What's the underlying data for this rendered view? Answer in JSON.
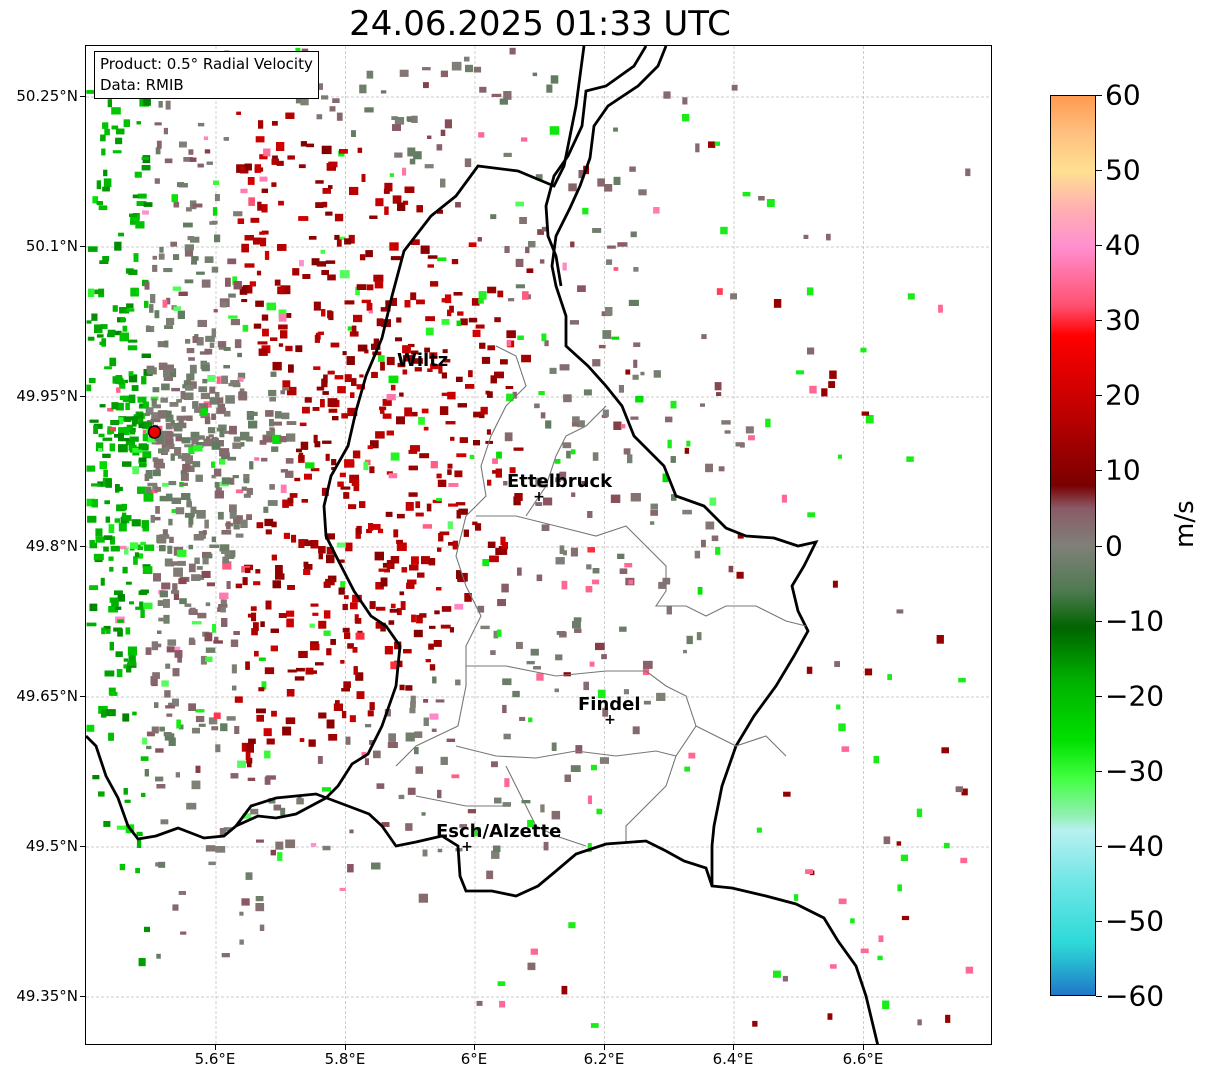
{
  "title": "24.06.2025 01:33 UTC",
  "info": {
    "product": "Product: 0.5° Radial Velocity",
    "data": "Data: RMIB"
  },
  "axes": {
    "lat_ticks": [
      "50.25°N",
      "50.1°N",
      "49.95°N",
      "49.8°N",
      "49.65°N",
      "49.5°N",
      "49.35°N"
    ],
    "lon_ticks": [
      "5.6°E",
      "5.8°E",
      "6°E",
      "6.2°E",
      "6.4°E",
      "6.6°E"
    ],
    "lat_range": [
      49.3,
      50.3
    ],
    "lon_range": [
      5.4,
      6.8
    ]
  },
  "cities": [
    {
      "name": "Wiltz",
      "lon": 5.93,
      "lat": 49.97,
      "marker": false
    },
    {
      "name": "Ettelbruck",
      "lon": 6.1,
      "lat": 49.85,
      "marker": true
    },
    {
      "name": "Findel",
      "lon": 6.21,
      "lat": 49.63,
      "marker": true
    },
    {
      "name": "Esch/Alzette",
      "lon": 5.99,
      "lat": 49.5,
      "marker": true
    }
  ],
  "radar_site": {
    "name": "radar-site",
    "lon": 5.505,
    "lat": 49.915
  },
  "colorbar": {
    "unit": "m/s",
    "min": -60,
    "max": 60,
    "tick_labels": [
      "60",
      "50",
      "40",
      "30",
      "20",
      "10",
      "0",
      "−10",
      "−20",
      "−30",
      "−40",
      "−50",
      "−60"
    ],
    "stops": [
      {
        "v": -60,
        "c": "#1f78c8"
      },
      {
        "v": -56,
        "c": "#27b3d0"
      },
      {
        "v": -53,
        "c": "#2ed9d9"
      },
      {
        "v": -45,
        "c": "#6fe6e6"
      },
      {
        "v": -38,
        "c": "#b8f0f0"
      },
      {
        "v": -36,
        "c": "#90f0b0"
      },
      {
        "v": -31,
        "c": "#40ff40"
      },
      {
        "v": -26,
        "c": "#00e000"
      },
      {
        "v": -18,
        "c": "#00b000"
      },
      {
        "v": -11,
        "c": "#006400"
      },
      {
        "v": -6,
        "c": "#4f7a52"
      },
      {
        "v": 0,
        "c": "#808078"
      },
      {
        "v": 5,
        "c": "#8a5a66"
      },
      {
        "v": 8,
        "c": "#7a0000"
      },
      {
        "v": 18,
        "c": "#c00000"
      },
      {
        "v": 28,
        "c": "#ff0000"
      },
      {
        "v": 32,
        "c": "#ff5070"
      },
      {
        "v": 40,
        "c": "#ff90d0"
      },
      {
        "v": 45,
        "c": "#ffb0b0"
      },
      {
        "v": 50,
        "c": "#ffe090"
      },
      {
        "v": 55,
        "c": "#ffc080"
      },
      {
        "v": 60,
        "c": "#ff9a50"
      }
    ]
  }
}
